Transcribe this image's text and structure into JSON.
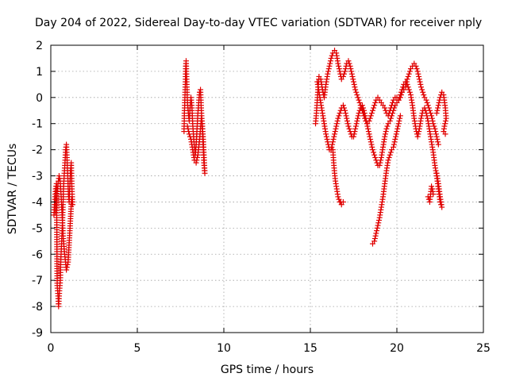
{
  "chart_data": {
    "type": "scatter",
    "title": "Day 204 of 2022, Sidereal Day-to-day VTEC variation (SDTVAR) for receiver nply",
    "xlabel": "GPS time / hours",
    "ylabel": "SDTVAR / TECUs",
    "xlim": [
      0,
      25
    ],
    "ylim": [
      -9,
      2
    ],
    "xticks": [
      0,
      5,
      10,
      15,
      20,
      25
    ],
    "yticks": [
      -9,
      -8,
      -7,
      -6,
      -5,
      -4,
      -3,
      -2,
      -1,
      0,
      1,
      2
    ],
    "grid": true,
    "marker": "+",
    "color": "#e00000",
    "series": [
      {
        "name": "SDTVAR",
        "segments": [
          [
            [
              0.18,
              -4.5
            ],
            [
              0.22,
              -4.0
            ],
            [
              0.28,
              -3.5
            ],
            [
              0.33,
              -3.3
            ],
            [
              0.37,
              -7.2
            ],
            [
              0.42,
              -7.6
            ],
            [
              0.45,
              -8.0
            ],
            [
              0.5,
              -7.4
            ],
            [
              0.55,
              -7.0
            ],
            [
              0.58,
              -6.2
            ],
            [
              0.62,
              -5.6
            ],
            [
              0.66,
              -5.0
            ],
            [
              0.7,
              -4.2
            ],
            [
              0.74,
              -3.4
            ],
            [
              0.78,
              -2.9
            ],
            [
              0.82,
              -2.5
            ],
            [
              0.86,
              -2.0
            ],
            [
              0.9,
              -1.8
            ],
            [
              0.94,
              -2.4
            ],
            [
              0.98,
              -3.0
            ],
            [
              1.02,
              -3.7
            ],
            [
              1.06,
              -4.0
            ],
            [
              1.1,
              -3.4
            ],
            [
              1.14,
              -2.8
            ],
            [
              1.18,
              -2.5
            ],
            [
              1.22,
              -3.5
            ],
            [
              1.26,
              -4.1
            ],
            [
              1.2,
              -3.9
            ],
            [
              1.0,
              -6.3
            ],
            [
              0.9,
              -6.6
            ],
            [
              0.8,
              -6.0
            ],
            [
              0.72,
              -5.4
            ],
            [
              0.66,
              -4.6
            ],
            [
              0.6,
              -3.8
            ],
            [
              0.54,
              -3.2
            ],
            [
              0.48,
              -3.0
            ],
            [
              0.42,
              -3.3
            ],
            [
              0.36,
              -3.7
            ],
            [
              0.3,
              -3.9
            ],
            [
              0.26,
              -4.4
            ]
          ],
          [
            [
              7.7,
              -1.3
            ],
            [
              7.72,
              -0.6
            ],
            [
              7.75,
              0.0
            ],
            [
              7.78,
              0.6
            ],
            [
              7.8,
              1.2
            ],
            [
              7.82,
              1.4
            ],
            [
              7.86,
              0.5
            ],
            [
              7.9,
              -0.2
            ],
            [
              7.95,
              -0.6
            ],
            [
              8.0,
              -0.9
            ],
            [
              8.05,
              -0.4
            ],
            [
              8.1,
              0.0
            ],
            [
              8.15,
              -0.3
            ],
            [
              8.2,
              -1.0
            ],
            [
              8.25,
              -1.5
            ],
            [
              8.3,
              -1.9
            ],
            [
              8.35,
              -2.2
            ],
            [
              8.4,
              -1.8
            ],
            [
              8.45,
              -1.2
            ],
            [
              8.5,
              -0.6
            ],
            [
              8.55,
              -0.2
            ],
            [
              8.6,
              0.2
            ],
            [
              8.65,
              0.3
            ],
            [
              8.7,
              -0.5
            ],
            [
              8.75,
              -1.1
            ],
            [
              8.8,
              -1.8
            ],
            [
              8.85,
              -2.5
            ],
            [
              8.9,
              -2.9
            ],
            [
              8.85,
              -2.2
            ],
            [
              8.8,
              -1.5
            ],
            [
              8.75,
              -1.0
            ],
            [
              8.7,
              -0.8
            ],
            [
              8.6,
              -1.6
            ],
            [
              8.5,
              -2.2
            ],
            [
              8.4,
              -2.5
            ],
            [
              8.3,
              -2.4
            ],
            [
              8.2,
              -2.0
            ],
            [
              8.1,
              -1.6
            ],
            [
              8.0,
              -1.4
            ],
            [
              7.9,
              -1.1
            ]
          ],
          [
            [
              15.3,
              -1.0
            ],
            [
              15.35,
              -0.6
            ],
            [
              15.4,
              -0.1
            ],
            [
              15.45,
              0.4
            ],
            [
              15.5,
              0.8
            ],
            [
              15.6,
              0.7
            ],
            [
              15.7,
              0.3
            ],
            [
              15.8,
              0.0
            ],
            [
              15.9,
              0.5
            ],
            [
              16.0,
              0.9
            ],
            [
              16.1,
              1.2
            ],
            [
              16.2,
              1.5
            ],
            [
              16.3,
              1.7
            ],
            [
              16.4,
              1.8
            ],
            [
              16.5,
              1.7
            ],
            [
              16.6,
              1.3
            ],
            [
              16.7,
              1.0
            ],
            [
              16.8,
              0.7
            ],
            [
              16.9,
              0.8
            ],
            [
              17.0,
              1.0
            ],
            [
              17.1,
              1.3
            ],
            [
              17.2,
              1.4
            ],
            [
              17.3,
              1.2
            ],
            [
              17.4,
              0.9
            ],
            [
              17.5,
              0.6
            ],
            [
              17.6,
              0.3
            ],
            [
              17.7,
              0.1
            ],
            [
              17.8,
              -0.1
            ],
            [
              17.9,
              -0.3
            ],
            [
              18.0,
              -0.5
            ],
            [
              18.1,
              -0.7
            ],
            [
              18.2,
              -0.9
            ],
            [
              18.3,
              -1.0
            ],
            [
              18.4,
              -0.9
            ],
            [
              18.5,
              -0.7
            ],
            [
              18.6,
              -0.5
            ],
            [
              18.7,
              -0.3
            ],
            [
              18.8,
              -0.1
            ],
            [
              18.9,
              0.0
            ],
            [
              19.0,
              -0.1
            ],
            [
              19.1,
              -0.2
            ],
            [
              19.2,
              -0.3
            ],
            [
              19.3,
              -0.4
            ],
            [
              19.4,
              -0.6
            ],
            [
              19.5,
              -0.7
            ],
            [
              19.6,
              -0.5
            ],
            [
              19.7,
              -0.3
            ],
            [
              19.8,
              -0.1
            ],
            [
              19.9,
              0.0
            ],
            [
              20.0,
              0.0
            ],
            [
              20.1,
              -0.1
            ],
            [
              20.2,
              0.0
            ],
            [
              20.3,
              0.2
            ],
            [
              20.4,
              0.3
            ],
            [
              20.5,
              0.4
            ],
            [
              20.6,
              0.7
            ],
            [
              20.7,
              0.9
            ],
            [
              20.8,
              1.1
            ],
            [
              20.9,
              1.2
            ],
            [
              21.0,
              1.3
            ],
            [
              21.1,
              1.2
            ],
            [
              21.2,
              1.0
            ],
            [
              21.3,
              0.7
            ],
            [
              21.4,
              0.4
            ],
            [
              21.5,
              0.2
            ],
            [
              21.6,
              0.0
            ],
            [
              21.7,
              -0.1
            ],
            [
              21.8,
              -0.3
            ],
            [
              21.9,
              -0.5
            ],
            [
              22.0,
              -0.7
            ],
            [
              22.1,
              -1.0
            ],
            [
              22.2,
              -1.2
            ],
            [
              22.3,
              -1.5
            ],
            [
              22.4,
              -1.8
            ]
          ],
          [
            [
              15.4,
              0.6
            ],
            [
              15.5,
              0.2
            ],
            [
              15.6,
              -0.2
            ],
            [
              15.7,
              -0.6
            ],
            [
              15.8,
              -1.0
            ],
            [
              15.9,
              -1.4
            ],
            [
              16.0,
              -1.7
            ],
            [
              16.1,
              -2.0
            ],
            [
              16.2,
              -2.0
            ],
            [
              16.3,
              -1.7
            ],
            [
              16.4,
              -1.4
            ],
            [
              16.5,
              -1.1
            ],
            [
              16.6,
              -0.8
            ],
            [
              16.7,
              -0.6
            ],
            [
              16.8,
              -0.4
            ],
            [
              16.9,
              -0.3
            ],
            [
              17.0,
              -0.5
            ],
            [
              17.1,
              -0.8
            ],
            [
              17.2,
              -1.1
            ],
            [
              17.3,
              -1.3
            ],
            [
              17.4,
              -1.5
            ],
            [
              17.5,
              -1.5
            ],
            [
              17.6,
              -1.2
            ],
            [
              17.7,
              -0.9
            ],
            [
              17.8,
              -0.6
            ],
            [
              17.9,
              -0.4
            ],
            [
              18.0,
              -0.3
            ],
            [
              18.1,
              -0.5
            ],
            [
              18.2,
              -0.8
            ],
            [
              18.3,
              -1.1
            ],
            [
              18.4,
              -1.4
            ],
            [
              18.5,
              -1.7
            ],
            [
              18.6,
              -2.0
            ],
            [
              18.7,
              -2.2
            ],
            [
              18.8,
              -2.4
            ],
            [
              18.9,
              -2.6
            ],
            [
              19.0,
              -2.6
            ],
            [
              19.1,
              -2.3
            ],
            [
              19.2,
              -1.9
            ],
            [
              19.3,
              -1.5
            ],
            [
              19.4,
              -1.2
            ],
            [
              19.5,
              -1.0
            ],
            [
              19.6,
              -0.9
            ],
            [
              19.7,
              -0.7
            ],
            [
              19.8,
              -0.5
            ],
            [
              19.9,
              -0.3
            ],
            [
              20.0,
              -0.2
            ],
            [
              20.1,
              -0.1
            ],
            [
              20.2,
              0.1
            ],
            [
              20.3,
              0.3
            ],
            [
              20.4,
              0.5
            ],
            [
              20.5,
              0.6
            ],
            [
              20.6,
              0.5
            ],
            [
              20.7,
              0.3
            ],
            [
              20.8,
              0.1
            ],
            [
              20.9,
              -0.3
            ],
            [
              21.0,
              -0.8
            ],
            [
              21.1,
              -1.2
            ],
            [
              21.2,
              -1.5
            ],
            [
              21.3,
              -1.2
            ],
            [
              21.4,
              -0.8
            ],
            [
              21.5,
              -0.5
            ],
            [
              21.6,
              -0.4
            ],
            [
              21.7,
              -0.6
            ],
            [
              21.8,
              -0.9
            ],
            [
              21.9,
              -1.3
            ],
            [
              22.0,
              -1.7
            ],
            [
              22.1,
              -2.1
            ],
            [
              22.2,
              -2.6
            ],
            [
              22.3,
              -3.0
            ],
            [
              22.4,
              -3.5
            ],
            [
              22.5,
              -4.0
            ],
            [
              22.6,
              -4.2
            ],
            [
              22.5,
              -3.8
            ],
            [
              22.4,
              -3.3
            ],
            [
              22.3,
              -2.9
            ]
          ],
          [
            [
              16.3,
              -2.0
            ],
            [
              16.35,
              -2.5
            ],
            [
              16.4,
              -2.9
            ],
            [
              16.45,
              -3.2
            ],
            [
              16.5,
              -3.4
            ],
            [
              16.55,
              -3.6
            ],
            [
              16.6,
              -3.8
            ],
            [
              16.65,
              -3.9
            ],
            [
              16.7,
              -4.0
            ],
            [
              16.75,
              -4.0
            ],
            [
              16.8,
              -4.1
            ],
            [
              16.9,
              -4.0
            ]
          ],
          [
            [
              18.6,
              -5.6
            ],
            [
              18.7,
              -5.5
            ],
            [
              18.8,
              -5.2
            ],
            [
              18.9,
              -4.9
            ],
            [
              19.0,
              -4.6
            ],
            [
              19.05,
              -4.4
            ],
            [
              19.1,
              -4.2
            ],
            [
              19.2,
              -3.8
            ],
            [
              19.3,
              -3.3
            ],
            [
              19.4,
              -2.8
            ],
            [
              19.5,
              -2.4
            ],
            [
              19.6,
              -2.2
            ],
            [
              19.7,
              -2.0
            ],
            [
              19.8,
              -1.9
            ],
            [
              19.9,
              -1.6
            ],
            [
              20.0,
              -1.3
            ],
            [
              20.1,
              -1.0
            ],
            [
              20.2,
              -0.7
            ]
          ],
          [
            [
              21.8,
              -3.8
            ],
            [
              21.85,
              -3.9
            ],
            [
              21.9,
              -4.0
            ],
            [
              21.95,
              -3.7
            ],
            [
              22.0,
              -3.4
            ],
            [
              22.05,
              -3.5
            ],
            [
              22.1,
              -3.7
            ]
          ],
          [
            [
              22.3,
              -0.6
            ],
            [
              22.4,
              -0.3
            ],
            [
              22.5,
              0.0
            ],
            [
              22.6,
              0.2
            ],
            [
              22.7,
              0.1
            ],
            [
              22.8,
              -0.4
            ],
            [
              22.85,
              -0.8
            ],
            [
              22.75,
              -1.1
            ],
            [
              22.7,
              -1.3
            ],
            [
              22.8,
              -1.4
            ]
          ]
        ]
      }
    ]
  }
}
